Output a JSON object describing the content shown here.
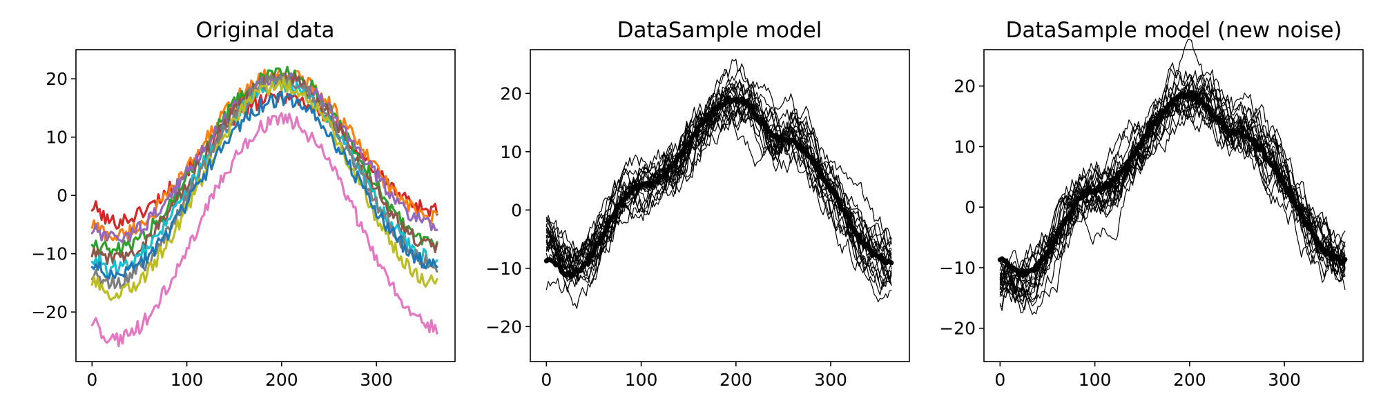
{
  "chart_data": [
    {
      "type": "line",
      "title": "Original data",
      "xlabel": "",
      "ylabel": "",
      "xlim": [
        -17,
        383
      ],
      "ylim": [
        -28.5,
        25
      ],
      "xticks": [
        0,
        100,
        200,
        300
      ],
      "yticks": [
        -20,
        -10,
        0,
        10,
        20
      ],
      "grid": false,
      "legend": null,
      "x_range": [
        0,
        365
      ],
      "series": [
        {
          "color": "#d62728",
          "start": -2.0,
          "min": -4.5,
          "peak": 17.0,
          "end": -2.5
        },
        {
          "color": "#ff7f0e",
          "start": -5.0,
          "min": -7.0,
          "peak": 21.0,
          "end": -4.0
        },
        {
          "color": "#2ca02c",
          "start": -8.0,
          "min": -9.5,
          "peak": 21.0,
          "end": -8.0
        },
        {
          "color": "#9467bd",
          "start": -6.0,
          "min": -7.5,
          "peak": 20.0,
          "end": -5.0
        },
        {
          "color": "#8c564b",
          "start": -10.0,
          "min": -11.0,
          "peak": 20.0,
          "end": -9.0
        },
        {
          "color": "#17becf",
          "start": -11.0,
          "min": -12.5,
          "peak": 19.0,
          "end": -11.0
        },
        {
          "color": "#7f7f7f",
          "start": -14.0,
          "min": -15.0,
          "peak": 20.0,
          "end": -12.0
        },
        {
          "color": "#bcbd22",
          "start": -15.0,
          "min": -17.0,
          "peak": 19.0,
          "end": -15.0
        },
        {
          "color": "#1f77b4",
          "start": -12.0,
          "min": -14.0,
          "peak": 16.5,
          "end": -12.0
        },
        {
          "color": "#e377c2",
          "start": -22.0,
          "min": -25.0,
          "peak": 13.0,
          "end": -22.5
        }
      ]
    },
    {
      "type": "line",
      "title": "DataSample model",
      "xlabel": "",
      "ylabel": "",
      "xlim": [
        -17,
        383
      ],
      "ylim": [
        -26,
        27.5
      ],
      "xticks": [
        0,
        100,
        200,
        300
      ],
      "yticks": [
        -20,
        -10,
        0,
        10,
        20
      ],
      "grid": false,
      "legend": null,
      "x_range": [
        0,
        365
      ],
      "series_color": "#000000",
      "mean": {
        "x": [
          0,
          25,
          100,
          200,
          250,
          365
        ],
        "y": [
          -8.5,
          -11.0,
          4.0,
          19.0,
          12.0,
          -9.0
        ]
      },
      "sample_count": 20,
      "noise_amplitude": 6.5
    },
    {
      "type": "line",
      "title": "DataSample model (new noise)",
      "xlabel": "",
      "ylabel": "",
      "xlim": [
        -17,
        383
      ],
      "ylim": [
        -25.5,
        26
      ],
      "xticks": [
        0,
        100,
        200,
        300
      ],
      "yticks": [
        -20,
        -10,
        0,
        10,
        20
      ],
      "grid": false,
      "legend": null,
      "x_range": [
        0,
        365
      ],
      "series_color": "#000000",
      "mean": {
        "x": [
          0,
          25,
          100,
          200,
          250,
          365
        ],
        "y": [
          -8.5,
          -11.0,
          3.0,
          18.5,
          12.0,
          -9.0
        ]
      },
      "sample_count": 20,
      "noise_amplitude": 6.5
    }
  ]
}
